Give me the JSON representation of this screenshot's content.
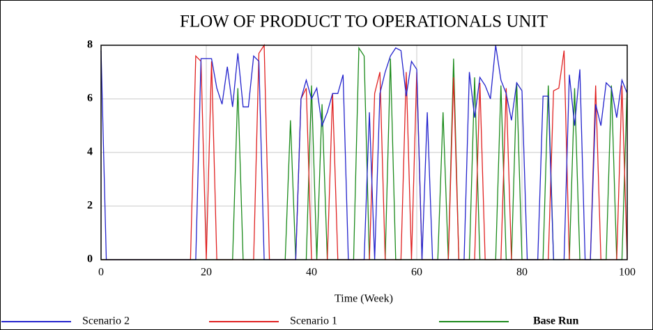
{
  "chart_data": {
    "type": "line",
    "title": "FLOW OF PRODUCT TO OPERATIONALS UNIT",
    "x_label": "Time (Week)",
    "x": [
      0,
      1,
      2,
      3,
      4,
      5,
      6,
      7,
      8,
      9,
      10,
      11,
      12,
      13,
      14,
      15,
      16,
      17,
      18,
      19,
      20,
      21,
      22,
      23,
      24,
      25,
      26,
      27,
      28,
      29,
      30,
      31,
      32,
      33,
      34,
      35,
      36,
      37,
      38,
      39,
      40,
      41,
      42,
      43,
      44,
      45,
      46,
      47,
      48,
      49,
      50,
      51,
      52,
      53,
      54,
      55,
      56,
      57,
      58,
      59,
      60,
      61,
      62,
      63,
      64,
      65,
      66,
      67,
      68,
      69,
      70,
      71,
      72,
      73,
      74,
      75,
      76,
      77,
      78,
      79,
      80,
      81,
      82,
      83,
      84,
      85,
      86,
      87,
      88,
      89,
      90,
      91,
      92,
      93,
      94,
      95,
      96,
      97,
      98,
      99,
      100
    ],
    "series": [
      {
        "name": "Scenario 2",
        "color": "#2222cc",
        "values": [
          7.8,
          0,
          0,
          0,
          0,
          0,
          0,
          0,
          0,
          0,
          0,
          0,
          0,
          0,
          0,
          0,
          0,
          0,
          0,
          7.5,
          7.5,
          7.5,
          6.4,
          5.8,
          7.2,
          5.7,
          7.7,
          5.7,
          5.7,
          7.6,
          7.4,
          0,
          0,
          0,
          0,
          0,
          0,
          0,
          6,
          6.7,
          6,
          6.4,
          5,
          5.5,
          6.2,
          6.2,
          6.9,
          0,
          0,
          0,
          0,
          5.5,
          0,
          6.2,
          7,
          7.6,
          7.9,
          7.8,
          6.1,
          7.4,
          7.1,
          0,
          5.5,
          0,
          0,
          0,
          0,
          0,
          0,
          0,
          7,
          5.3,
          6.8,
          6.5,
          6,
          8,
          6.7,
          6.2,
          5.2,
          6.6,
          6.3,
          0,
          0,
          0,
          6.1,
          6.1,
          0,
          0,
          0,
          6.9,
          5,
          7.1,
          0,
          0,
          5.8,
          5,
          6.6,
          6.4,
          5.3,
          6.7,
          6.2
        ]
      },
      {
        "name": "Scenario 1",
        "color": "#e02020",
        "values": [
          0,
          0,
          0,
          0,
          0,
          0,
          0,
          0,
          0,
          0,
          0,
          0,
          0,
          0,
          0,
          0,
          0,
          0,
          7.6,
          7.4,
          0,
          7.4,
          0,
          0,
          0,
          0,
          0,
          0,
          0,
          0,
          7.7,
          8,
          0,
          0,
          0,
          0,
          0,
          0,
          6,
          6.4,
          0,
          0,
          0,
          0,
          6.2,
          0,
          0,
          0,
          0,
          0,
          0,
          0,
          6.2,
          7,
          0,
          0,
          0,
          0,
          7,
          0,
          7,
          0,
          0,
          0,
          0,
          0,
          0,
          6.8,
          0,
          0,
          0,
          0,
          6.6,
          0,
          0,
          0,
          0,
          6.4,
          0,
          0,
          0,
          0,
          0,
          0,
          0,
          0,
          6.3,
          6.4,
          7.8,
          0,
          0,
          0,
          0,
          0,
          6.5,
          0,
          0,
          0,
          0,
          6.5,
          0
        ]
      },
      {
        "name": "Base Run",
        "color": "#1a8a1a",
        "values": [
          0,
          0,
          0,
          0,
          0,
          0,
          0,
          0,
          0,
          0,
          0,
          0,
          0,
          0,
          0,
          0,
          0,
          0,
          0,
          0,
          0,
          0,
          0,
          0,
          0,
          0,
          6.4,
          0,
          0,
          0,
          0,
          0,
          0,
          0,
          0,
          0,
          5.2,
          0,
          0,
          0,
          6.5,
          0,
          5.8,
          0,
          0,
          0,
          0,
          0,
          0,
          7.9,
          7.6,
          0,
          0,
          0,
          0,
          7.5,
          0,
          0,
          0,
          0,
          0,
          0,
          0,
          0,
          0,
          5.5,
          0,
          7.5,
          0,
          0,
          0,
          6.8,
          0,
          0,
          0,
          0,
          6.5,
          0,
          0,
          6.6,
          0,
          0,
          0,
          0,
          0,
          6.5,
          0,
          0,
          0,
          0,
          6.4,
          0,
          0,
          0,
          0,
          0,
          0,
          6.5,
          0,
          0,
          6.5
        ]
      }
    ],
    "xlim": [
      0,
      100
    ],
    "xticks": [
      0,
      20,
      40,
      60,
      80,
      100
    ],
    "ylim": [
      0,
      8
    ],
    "yticks": [
      0,
      2,
      4,
      6,
      8
    ],
    "grid": true,
    "legend": "bottom"
  }
}
